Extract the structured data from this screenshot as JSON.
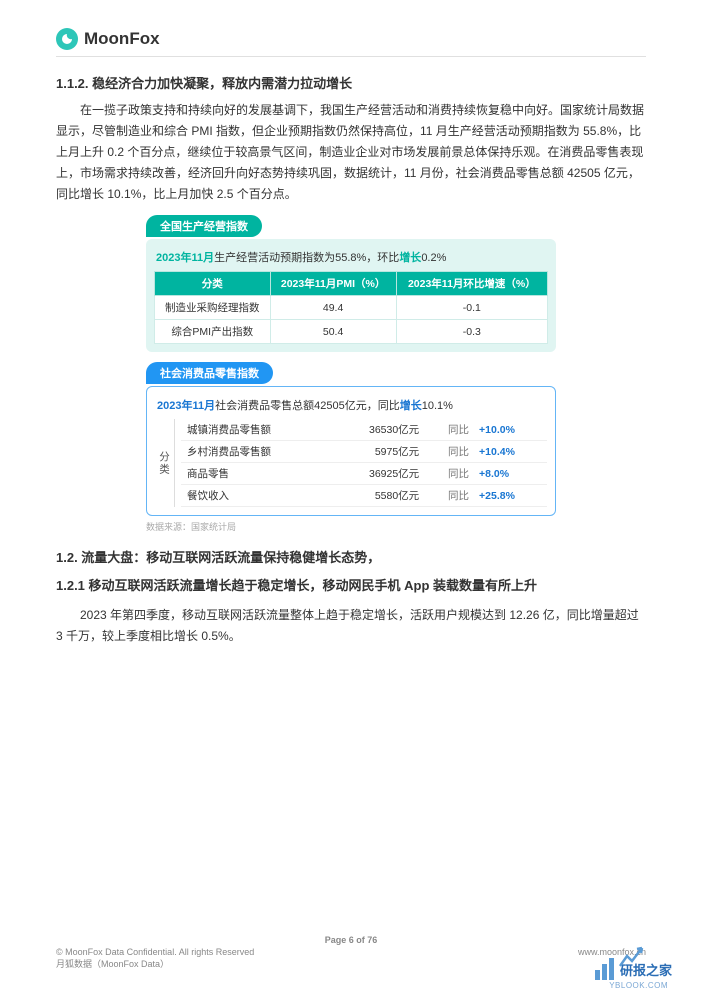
{
  "brand": {
    "name": "MoonFox"
  },
  "section_112": {
    "heading": "1.1.2. 稳经济合力加快凝聚，释放内需潜力拉动增长",
    "body": "在一揽子政策支持和持续向好的发展基调下，我国生产经营活动和消费持续恢复稳中向好。国家统计局数据显示，尽管制造业和综合 PMI 指数，但企业预期指数仍然保持高位，11 月生产经营活动预期指数为 55.8%，比上月上升 0.2 个百分点，继续位于较高景气区间，制造业企业对市场发展前景总体保持乐观。在消费品零售表现上，市场需求持续改善，经济回升向好态势持续巩固，数据统计，11 月份，社会消费品零售总额 42505 亿元，同比增长 10.1%，比上月加快 2.5 个百分点。"
  },
  "pmi_block": {
    "pill": "全国生产经营指数",
    "pill_color": "#00b4a0",
    "box_bg": "#e0f5f2",
    "summary_prefix": "2023年11月",
    "summary_mid": "生产经营活动预期指数为55.8%，环比",
    "summary_accent": "增长",
    "summary_suffix": "0.2%",
    "table": {
      "header_bg": "#00b4a0",
      "columns": [
        "分类",
        "2023年11月PMI（%）",
        "2023年11月环比增速（%）"
      ],
      "rows": [
        [
          "制造业采购经理指数",
          "49.4",
          "-0.1"
        ],
        [
          "综合PMI产出指数",
          "50.4",
          "-0.3"
        ]
      ]
    }
  },
  "retail_block": {
    "pill": "社会消费品零售指数",
    "pill_color": "#2196f3",
    "summary_prefix": "2023年11月",
    "summary_mid": "社会消费品零售总额42505亿元，同比",
    "summary_accent": "增长",
    "summary_suffix": "10.1%",
    "side_label": "分类",
    "yoy_label": "同比",
    "pct_color": "#1976d2",
    "rows": [
      {
        "name": "城镇消费品零售额",
        "value": "36530亿元",
        "yoy": "+10.0%"
      },
      {
        "name": "乡村消费品零售额",
        "value": "5975亿元",
        "yoy": "+10.4%"
      },
      {
        "name": "商品零售",
        "value": "36925亿元",
        "yoy": "+8.0%"
      },
      {
        "name": "餐饮收入",
        "value": "5580亿元",
        "yoy": "+25.8%"
      }
    ]
  },
  "source_line": "数据来源：国家统计局",
  "section_12": {
    "heading": "1.2.  流量大盘：移动互联网活跃流量保持稳健增长态势，"
  },
  "section_121": {
    "heading": "1.2.1  移动互联网活跃流量增长趋于稳定增长，移动网民手机 App 装载数量有所上升",
    "body": "2023 年第四季度，移动互联网活跃流量整体上趋于稳定增长，活跃用户规模达到 12.26 亿，同比增量超过 3 千万，较上季度相比增长 0.5%。"
  },
  "footer": {
    "page": "Page  6 of 76",
    "copyright": "© MoonFox Data Confidential. All rights Reserved",
    "site": "www.moonfox.cn",
    "org": "月狐数据（MoonFox Data）"
  },
  "watermark": {
    "title": "研报之家",
    "sub": "YBLOOK.COM"
  }
}
